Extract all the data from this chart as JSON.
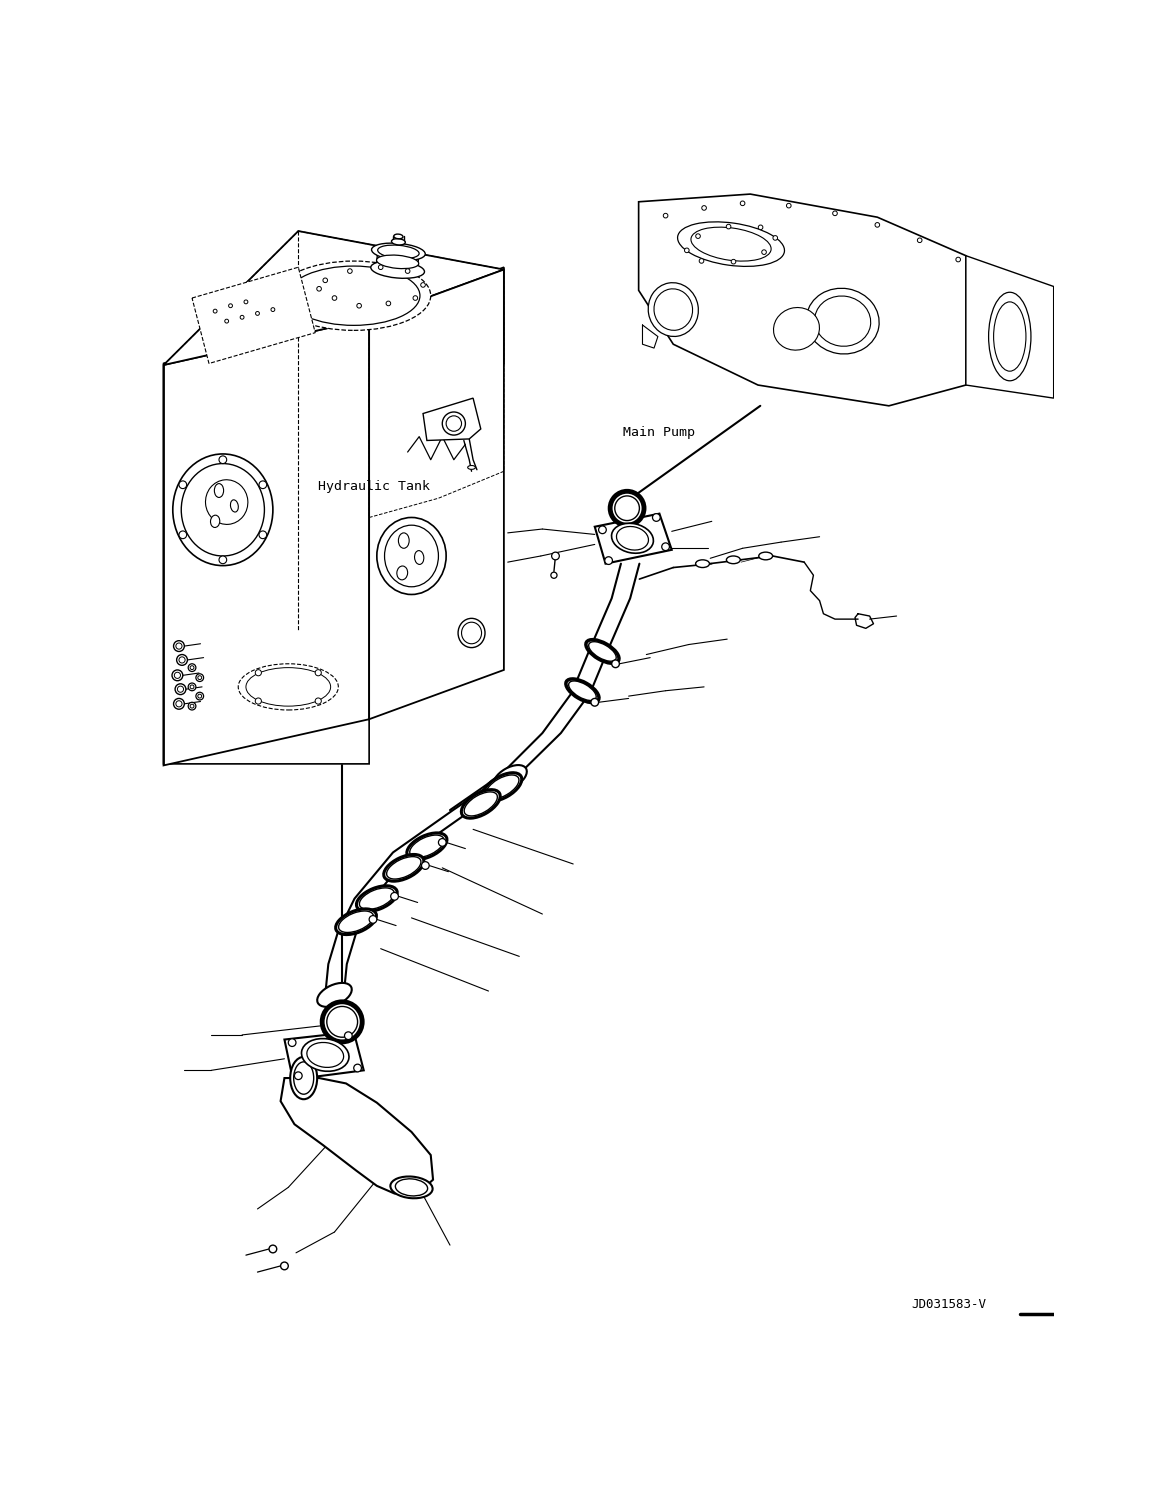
{
  "background_color": "#ffffff",
  "line_color": "#000000",
  "label_hydraulic_tank": "Hydraulic Tank",
  "label_main_pump": "Main Pump",
  "label_drawing_number": "JD031583-V",
  "fig_width": 11.74,
  "fig_height": 14.89,
  "dpi": 100
}
